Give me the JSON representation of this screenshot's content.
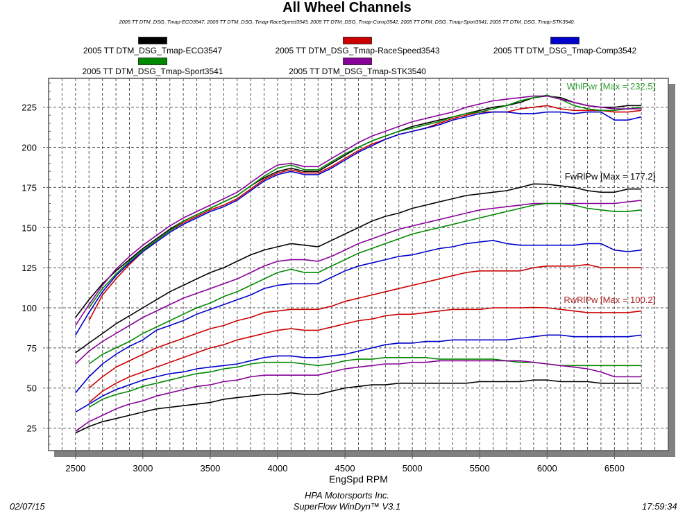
{
  "header": {
    "title": "All Wheel Channels",
    "subtitle": "2005 TT DTM_DSG_Tmap-ECO3547, 2005 TT DTM_DSG_Tmap-RaceSpeed3543, 2005 TT DTM_DSG_Tmap-Comp3542, 2005 TT DTM_DSG_Tmap-Sport3541, 2005 TT DTM_DSG_Tmap-STK3540."
  },
  "footer": {
    "date": "02/07/15",
    "company": "HPA Motorsports Inc.",
    "software": "SuperFlow WinDyn™ V3.1",
    "time": "17:59:34"
  },
  "chart_data": {
    "type": "line",
    "title": "All Wheel Channels",
    "xlabel": "EngSpd RPM",
    "ylabel": "",
    "xlim": [
      2300,
      6900
    ],
    "ylim": [
      11,
      243
    ],
    "xticks": [
      2500,
      3000,
      3500,
      4000,
      4500,
      5000,
      5500,
      6000,
      6500
    ],
    "yticks": [
      25,
      50,
      75,
      100,
      125,
      150,
      175,
      200,
      225
    ],
    "grid": true,
    "legend_position": "top",
    "legend": [
      {
        "name": "2005 TT DTM_DSG_Tmap-ECO3547",
        "color": "#000000"
      },
      {
        "name": "2005 TT DTM_DSG_Tmap-RaceSpeed3543",
        "color": "#cc0000"
      },
      {
        "name": "2005 TT DTM_DSG_Tmap-Comp3542",
        "color": "#0000cc"
      },
      {
        "name": "2005 TT DTM_DSG_Tmap-Sport3541",
        "color": "#008800"
      },
      {
        "name": "2005 TT DTM_DSG_Tmap-STK3540",
        "color": "#880099"
      }
    ],
    "annotations": [
      {
        "text": "WhlPwr [Max = 232.5]",
        "color": "#2e9e2e",
        "x": 6700,
        "y": 236
      },
      {
        "text": "FwRlPw [Max = 177.2]",
        "color": "#000000",
        "x": 6700,
        "y": 180
      },
      {
        "text": "RwRlPw [Max = 100.2]",
        "color": "#aa2222",
        "x": 6700,
        "y": 103
      }
    ],
    "x": [
      2500,
      2600,
      2700,
      2800,
      2900,
      3000,
      3100,
      3200,
      3300,
      3400,
      3500,
      3600,
      3700,
      3800,
      3900,
      4000,
      4100,
      4200,
      4300,
      4400,
      4500,
      4600,
      4700,
      4800,
      4900,
      5000,
      5100,
      5200,
      5300,
      5400,
      5500,
      5600,
      5700,
      5800,
      5900,
      6000,
      6100,
      6200,
      6300,
      6400,
      6500,
      6600,
      6700
    ],
    "series": [
      {
        "name": "ECO3547 WhlPwr",
        "run": "ECO3547",
        "channel": "WhlPwr",
        "color": "#000000",
        "values": [
          94,
          105,
          115,
          123,
          130,
          137,
          143,
          149,
          154,
          158,
          162,
          166,
          170,
          176,
          181,
          185,
          187,
          185,
          185,
          190,
          195,
          200,
          204,
          207,
          210,
          213,
          215,
          217,
          219,
          221,
          223,
          225,
          226,
          228,
          231,
          232,
          231,
          228,
          226,
          225,
          225,
          226,
          226
        ]
      },
      {
        "name": "RaceSpeed3543 WhlPwr",
        "run": "RaceSpeed3543",
        "channel": "WhlPwr",
        "color": "#cc0000",
        "values": [
          null,
          92,
          108,
          118,
          127,
          135,
          142,
          148,
          153,
          157,
          161,
          164,
          168,
          174,
          180,
          184,
          186,
          184,
          184,
          188,
          193,
          198,
          202,
          205,
          208,
          210,
          212,
          215,
          218,
          220,
          222,
          222,
          222,
          224,
          225,
          226,
          224,
          223,
          223,
          223,
          222,
          222,
          223
        ]
      },
      {
        "name": "Comp3542 WhlPwr",
        "run": "Comp3542",
        "channel": "WhlPwr",
        "color": "#0000cc",
        "values": [
          83,
          97,
          110,
          120,
          128,
          135,
          141,
          147,
          152,
          156,
          160,
          163,
          167,
          173,
          179,
          183,
          185,
          183,
          183,
          187,
          192,
          197,
          201,
          205,
          208,
          210,
          212,
          214,
          217,
          219,
          221,
          222,
          222,
          221,
          221,
          222,
          222,
          221,
          222,
          222,
          217,
          217,
          219
        ]
      },
      {
        "name": "Sport3541 WhlPwr",
        "run": "Sport3541",
        "channel": "WhlPwr",
        "color": "#008800",
        "values": [
          null,
          100,
          112,
          121,
          129,
          136,
          142,
          148,
          154,
          158,
          162,
          166,
          170,
          176,
          182,
          187,
          189,
          186,
          186,
          191,
          196,
          200,
          204,
          207,
          210,
          212,
          214,
          216,
          219,
          221,
          222,
          224,
          226,
          229,
          231,
          232.5,
          230,
          226,
          224,
          223,
          223,
          224,
          225
        ]
      },
      {
        "name": "STK3540 WhlPwr",
        "run": "STK3540",
        "channel": "WhlPwr",
        "color": "#880099",
        "values": [
          89,
          102,
          114,
          124,
          132,
          139,
          145,
          151,
          156,
          160,
          164,
          168,
          172,
          178,
          184,
          189,
          190,
          188,
          188,
          193,
          198,
          203,
          207,
          210,
          213,
          216,
          218,
          220,
          222,
          225,
          227,
          229,
          230,
          231,
          232,
          232,
          230,
          228,
          226,
          225,
          224,
          224,
          224
        ]
      },
      {
        "name": "ECO3547 FwRlPw",
        "run": "ECO3547",
        "channel": "FwRlPw",
        "color": "#000000",
        "values": [
          72,
          78,
          84,
          90,
          95,
          100,
          105,
          110,
          114,
          118,
          122,
          125,
          129,
          133,
          136,
          138,
          140,
          139,
          138,
          142,
          146,
          150,
          154,
          157,
          159,
          162,
          164,
          166,
          168,
          170,
          171,
          172,
          173,
          175,
          177.2,
          177,
          176,
          175,
          173,
          172,
          172,
          174,
          174
        ]
      },
      {
        "name": "STK3540 FwRlPw",
        "run": "STK3540",
        "channel": "FwRlPw",
        "color": "#880099",
        "values": [
          65,
          73,
          79,
          84,
          89,
          94,
          98,
          102,
          106,
          109,
          112,
          115,
          118,
          122,
          126,
          129,
          130,
          130,
          129,
          132,
          136,
          140,
          143,
          146,
          149,
          151,
          153,
          155,
          157,
          159,
          161,
          162,
          163,
          164,
          165,
          165,
          165,
          165,
          165,
          165,
          165,
          166,
          167
        ]
      },
      {
        "name": "Sport3541 FwRlPw",
        "run": "Sport3541",
        "channel": "FwRlPw",
        "color": "#008800",
        "values": [
          null,
          65,
          71,
          75,
          79,
          84,
          88,
          92,
          96,
          100,
          103,
          107,
          110,
          114,
          118,
          122,
          124,
          122,
          122,
          126,
          130,
          134,
          137,
          140,
          143,
          146,
          148,
          150,
          152,
          154,
          156,
          158,
          160,
          162,
          164,
          165,
          165,
          164,
          162,
          161,
          160,
          160,
          161
        ]
      },
      {
        "name": "Comp3542 FwRlPw",
        "run": "Comp3542",
        "channel": "FwRlPw",
        "color": "#0000cc",
        "values": [
          47,
          57,
          65,
          71,
          76,
          80,
          86,
          89,
          92,
          96,
          99,
          102,
          105,
          108,
          112,
          114,
          115,
          115,
          115,
          119,
          123,
          126,
          128,
          130,
          132,
          133,
          135,
          137,
          138,
          140,
          141,
          142,
          140,
          139,
          139,
          139,
          139,
          139,
          140,
          140,
          136,
          135,
          136
        ]
      },
      {
        "name": "RaceSpeed3543 FwRlPw",
        "run": "RaceSpeed3543",
        "channel": "FwRlPw",
        "color": "#cc0000",
        "values": [
          null,
          50,
          57,
          63,
          67,
          71,
          75,
          78,
          81,
          84,
          87,
          89,
          92,
          94,
          97,
          98,
          99,
          99,
          99,
          101,
          104,
          106,
          108,
          110,
          112,
          114,
          116,
          118,
          120,
          122,
          123,
          123,
          123,
          123,
          125,
          126,
          126,
          126,
          127,
          125,
          125,
          125,
          125
        ]
      },
      {
        "name": "RaceSpeed3543 RwRlPw",
        "run": "RaceSpeed3543",
        "channel": "RwRlPw",
        "color": "#cc0000",
        "values": [
          null,
          41,
          48,
          53,
          57,
          60,
          63,
          66,
          69,
          72,
          75,
          77,
          80,
          82,
          84,
          86,
          87,
          86,
          86,
          88,
          90,
          92,
          93,
          95,
          96,
          96,
          97,
          98,
          99,
          99,
          99,
          100,
          100,
          100,
          100.2,
          100,
          99,
          98,
          97,
          97,
          97,
          97,
          98
        ]
      },
      {
        "name": "Comp3542 RwRlPw",
        "run": "Comp3542",
        "channel": "RwRlPw",
        "color": "#0000cc",
        "values": [
          35,
          40,
          45,
          49,
          52,
          55,
          57,
          59,
          60,
          62,
          63,
          64,
          65,
          67,
          69,
          70,
          70,
          69,
          69,
          70,
          71,
          73,
          75,
          77,
          78,
          78,
          79,
          79,
          80,
          80,
          80,
          80,
          80,
          81,
          82,
          83,
          83,
          82,
          82,
          82,
          82,
          82,
          83
        ]
      },
      {
        "name": "Sport3541 RwRlPw",
        "run": "Sport3541",
        "channel": "RwRlPw",
        "color": "#008800",
        "values": [
          null,
          38,
          43,
          46,
          48,
          51,
          53,
          55,
          57,
          59,
          60,
          62,
          63,
          65,
          66,
          66,
          66,
          65,
          64,
          65,
          67,
          68,
          68,
          69,
          69,
          69,
          69,
          68,
          68,
          68,
          68,
          68,
          67,
          66,
          66,
          65,
          64,
          64,
          64,
          64,
          64,
          64,
          64
        ]
      },
      {
        "name": "STK3540 RwRlPw",
        "run": "STK3540",
        "channel": "RwRlPw",
        "color": "#880099",
        "values": [
          23,
          29,
          33,
          37,
          40,
          42,
          45,
          47,
          49,
          51,
          52,
          54,
          55,
          57,
          58,
          58,
          58,
          58,
          58,
          60,
          62,
          63,
          64,
          65,
          65,
          66,
          66,
          67,
          67,
          67,
          67,
          67,
          67,
          67,
          66,
          65,
          64,
          63,
          62,
          60,
          57,
          57,
          57
        ]
      },
      {
        "name": "ECO3547 RwRlPw",
        "run": "ECO3547",
        "channel": "RwRlPw",
        "color": "#000000",
        "values": [
          22,
          26,
          29,
          31,
          33,
          35,
          37,
          38,
          39,
          40,
          41,
          43,
          44,
          45,
          46,
          46,
          47,
          46,
          46,
          48,
          50,
          51,
          52,
          52,
          53,
          53,
          53,
          53,
          53,
          53,
          54,
          54,
          54,
          54,
          55,
          55,
          54,
          54,
          54,
          53,
          53,
          53,
          53
        ]
      }
    ]
  }
}
